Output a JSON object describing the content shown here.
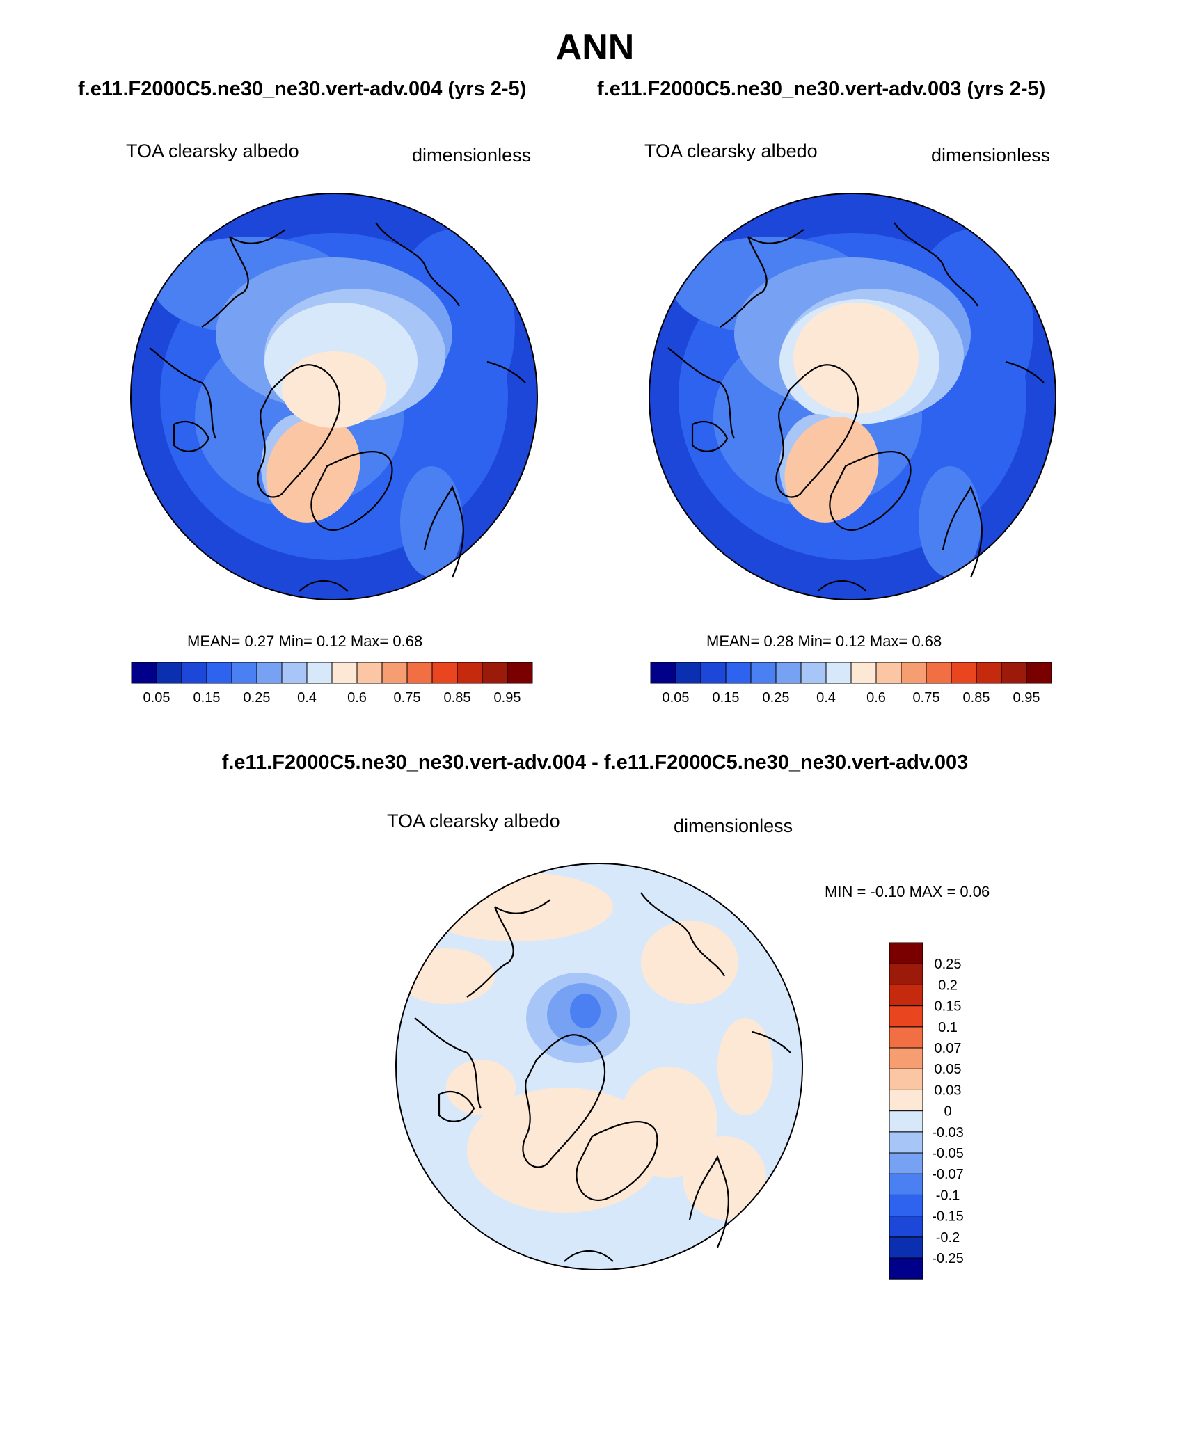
{
  "figure": {
    "season": "ANN",
    "case_titles": [
      "f.e11.F2000C5.ne30_ne30.vert-adv.004 (yrs 2-5)",
      "f.e11.F2000C5.ne30_ne30.vert-adv.003 (yrs 2-5)"
    ],
    "diff_title": "f.e11.F2000C5.ne30_ne30.vert-adv.004 - f.e11.F2000C5.ne30_ne30.vert-adv.003"
  },
  "panels": [
    {
      "variable": "TOA clearsky albedo",
      "units": "dimensionless",
      "stats": {
        "mean_label": "MEAN=",
        "mean": "0.27",
        "min_label": "Min=",
        "min": "0.12",
        "max_label": "Max=",
        "max": "0.68"
      }
    },
    {
      "variable": "TOA clearsky albedo",
      "units": "dimensionless",
      "stats": {
        "mean_label": "MEAN=",
        "mean": "0.28",
        "min_label": "Min=",
        "min": "0.12",
        "max_label": "Max=",
        "max": "0.68"
      }
    },
    {
      "variable": "TOA clearsky albedo",
      "units": "dimensionless",
      "stats_text": "MIN =  -0.10 MAX =   0.06"
    }
  ],
  "colorbars": {
    "abs_colors": [
      "#00008b",
      "#0a2fb0",
      "#1d47d8",
      "#2e63f0",
      "#4a80f2",
      "#77a2f4",
      "#a7c6f7",
      "#d8e8fb",
      "#fde8d6",
      "#fbc6a4",
      "#f79d72",
      "#f26f44",
      "#e9451f",
      "#c5290e",
      "#9c1a0a",
      "#7a0000"
    ],
    "abs_labels": [
      "0.05",
      "0.15",
      "0.25",
      "0.4",
      "0.6",
      "0.75",
      "0.85",
      "0.95"
    ],
    "diff_colors": [
      "#00008b",
      "#0a2fb0",
      "#1d47d8",
      "#2e63f0",
      "#4a80f2",
      "#77a2f4",
      "#a7c6f7",
      "#d8e8fb",
      "#fde8d6",
      "#fbc6a4",
      "#f79d72",
      "#f26f44",
      "#e9451f",
      "#c5290e",
      "#9c1a0a",
      "#7a0000"
    ],
    "diff_labels": [
      "-0.25",
      "-0.2",
      "-0.15",
      "-0.1",
      "-0.07",
      "-0.05",
      "-0.03",
      "0",
      "0.03",
      "0.05",
      "0.07",
      "0.1",
      "0.15",
      "0.2",
      "0.25"
    ]
  }
}
